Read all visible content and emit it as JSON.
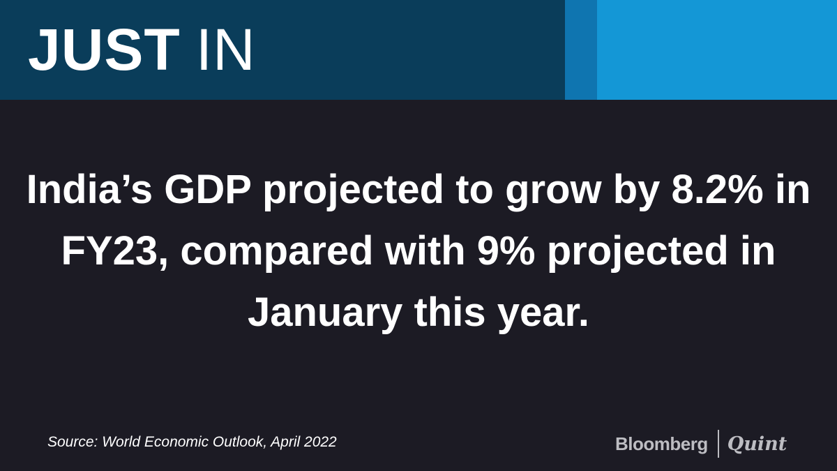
{
  "colors": {
    "background": "#1c1b24",
    "banner_dark": "#0a3d5a",
    "banner_mid": "#0f75b0",
    "banner_light": "#1497d6",
    "text": "#ffffff",
    "logo": "#bdbdc2"
  },
  "banner": {
    "title_bold": "JUST",
    "title_light": "IN"
  },
  "headline": "India’s GDP projected to grow by 8.2% in FY23, compared with 9% projected in January this year.",
  "source": "Source: World Economic Outlook, April 2022",
  "logo": {
    "brand_primary": "Bloomberg",
    "brand_secondary": "Quint"
  }
}
